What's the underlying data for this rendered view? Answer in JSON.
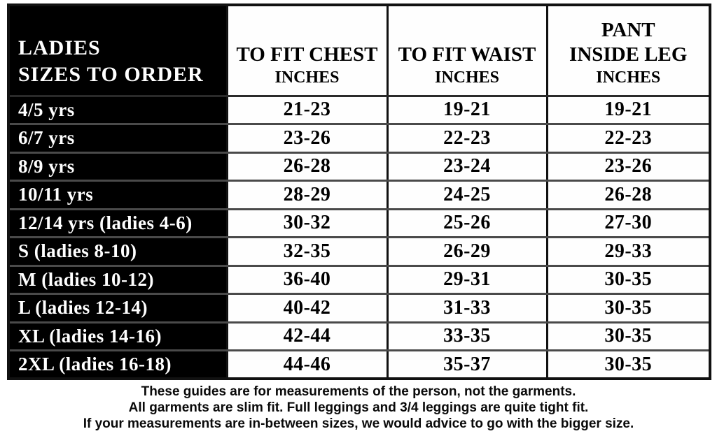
{
  "chart_data": {
    "type": "table",
    "title": "LADIES SIZES TO ORDER",
    "columns": [
      "LADIES SIZES TO ORDER",
      "TO FIT CHEST INCHES",
      "TO FIT WAIST INCHES",
      "PANT INSIDE LEG INCHES"
    ],
    "rows": [
      [
        "4/5 yrs",
        "21-23",
        "19-21",
        "19-21"
      ],
      [
        "6/7 yrs",
        "23-26",
        "22-23",
        "22-23"
      ],
      [
        "8/9 yrs",
        "26-28",
        "23-24",
        "23-26"
      ],
      [
        "10/11 yrs",
        "28-29",
        "24-25",
        "26-28"
      ],
      [
        "12/14 yrs (ladies 4-6)",
        "30-32",
        "25-26",
        "27-30"
      ],
      [
        "S (ladies 8-10)",
        "32-35",
        "26-29",
        "29-33"
      ],
      [
        "M (ladies 10-12)",
        "36-40",
        "29-31",
        "30-35"
      ],
      [
        "L (ladies 12-14)",
        "40-42",
        "31-33",
        "30-35"
      ],
      [
        "XL (ladies 14-16)",
        "42-44",
        "33-35",
        "30-35"
      ],
      [
        "2XL (ladies 16-18)",
        "44-46",
        "35-37",
        "30-35"
      ]
    ]
  },
  "header": {
    "size_col": {
      "line1": "LADIES",
      "line2": "SIZES TO ORDER"
    },
    "chest": {
      "title": "TO FIT CHEST",
      "unit": "INCHES"
    },
    "waist": {
      "title": "TO FIT WAIST",
      "unit": "INCHES"
    },
    "leg": {
      "title1": "PANT",
      "title2": "INSIDE LEG",
      "unit": "INCHES"
    }
  },
  "rows": [
    {
      "size": "4/5 yrs",
      "chest": "21-23",
      "waist": "19-21",
      "leg": "19-21"
    },
    {
      "size": "6/7 yrs",
      "chest": "23-26",
      "waist": "22-23",
      "leg": "22-23"
    },
    {
      "size": "8/9 yrs",
      "chest": "26-28",
      "waist": "23-24",
      "leg": "23-26"
    },
    {
      "size": "10/11 yrs",
      "chest": "28-29",
      "waist": "24-25",
      "leg": "26-28"
    },
    {
      "size": "12/14 yrs (ladies 4-6)",
      "chest": "30-32",
      "waist": "25-26",
      "leg": "27-30"
    },
    {
      "size": "S (ladies 8-10)",
      "chest": "32-35",
      "waist": "26-29",
      "leg": "29-33"
    },
    {
      "size": "M (ladies 10-12)",
      "chest": "36-40",
      "waist": "29-31",
      "leg": "30-35"
    },
    {
      "size": "L (ladies 12-14)",
      "chest": "40-42",
      "waist": "31-33",
      "leg": "30-35"
    },
    {
      "size": "XL (ladies 14-16)",
      "chest": "42-44",
      "waist": "33-35",
      "leg": "30-35"
    },
    {
      "size": "2XL (ladies 16-18)",
      "chest": "44-46",
      "waist": "35-37",
      "leg": "30-35"
    }
  ],
  "notes": {
    "line1": "These guides are for measurements of the person, not the garments.",
    "line2": "All garments are slim fit. Full leggings and 3/4 leggings are quite tight fit.",
    "line3": "If your measurements are in-between sizes, we would advice to go with the bigger size."
  },
  "colors": {
    "label_bg": "#000000",
    "cell_bg": "#fefefe",
    "grid_line": "#4a4a4a",
    "outer_border": "#111111",
    "text_light": "#ffffff",
    "text_dark": "#000000"
  }
}
